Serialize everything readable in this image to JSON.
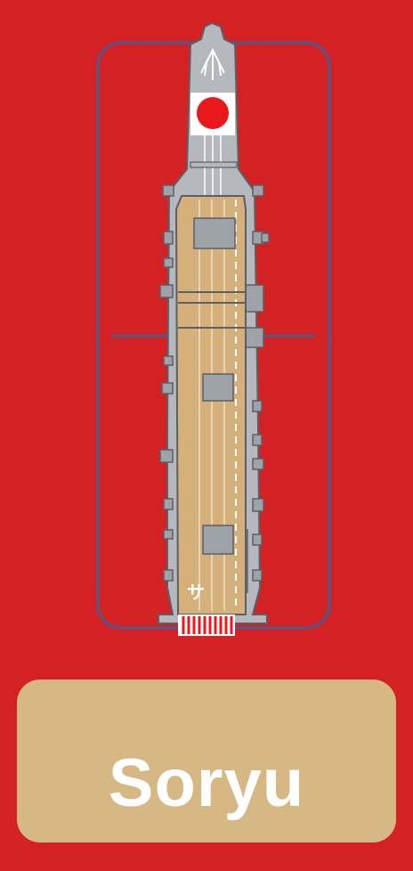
{
  "card": {
    "ship_name": "Soryu",
    "hull_marking": "サ"
  },
  "colors": {
    "background": "#d42224",
    "panel": "#d6b884",
    "deck": "#d5b07b",
    "hull": "#b5b8bd",
    "frame": "#4b5a8f",
    "rising_sun": "#e8181b",
    "name_text": "#ffffff"
  },
  "icons": {
    "bow_marking": "rising-sun-icon",
    "wind_indicator": "arrow-up-icon"
  }
}
